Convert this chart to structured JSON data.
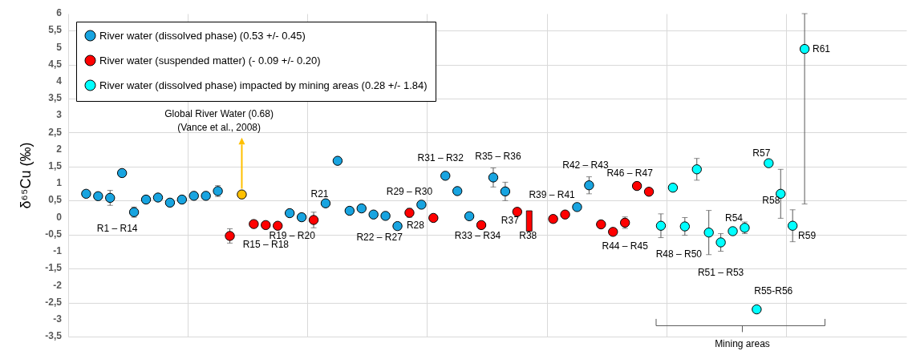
{
  "chart_data": {
    "type": "scatter",
    "ylabel": "δ⁶⁵Cu (‰)",
    "marker": "circle",
    "grid": true,
    "legend": "top left",
    "tick_labels": "y",
    "categories": [
      null,
      null,
      null,
      null,
      null,
      null,
      null,
      null,
      null,
      null,
      null,
      null,
      null,
      null,
      null,
      null,
      null,
      null,
      null,
      null,
      null,
      null,
      null,
      null,
      null,
      null,
      null,
      null,
      null,
      null,
      null,
      null,
      null,
      null,
      null,
      null,
      null,
      null,
      null,
      null,
      null,
      null,
      null,
      null,
      null,
      null,
      null,
      null,
      null,
      null,
      null,
      null,
      null,
      null,
      null,
      null,
      null,
      null,
      null,
      null,
      null,
      null,
      null,
      null,
      null,
      null,
      null,
      null,
      null,
      null
    ],
    "ylim": [
      -3.5,
      6
    ],
    "yticks": [
      {
        "value": -3.5,
        "label": "-3,5"
      },
      -3,
      {
        "value": -2.5,
        "label": "-2,5"
      },
      -2,
      {
        "value": -1.5,
        "label": "-1,5"
      },
      -1,
      {
        "value": -0.5,
        "label": "-0,5"
      },
      0,
      {
        "value": 0.5,
        "label": "0,5"
      },
      1,
      {
        "value": 1.5,
        "label": "1,5"
      },
      2,
      {
        "value": 2.5,
        "label": "2,5"
      },
      3,
      {
        "value": 3.5,
        "label": "3,5"
      },
      4,
      {
        "value": 4.5,
        "label": "4,5"
      },
      5,
      {
        "value": 5.5,
        "label": "5,5"
      },
      6
    ],
    "series": [
      {
        "name": "River water (dissolved phase) (0.53 +/- 0.45)",
        "color": "#18a4e0",
        "values": [
          null,
          0.7,
          0.63,
          0.58,
          1.31,
          0.16,
          0.53,
          0.59,
          0.44,
          0.53,
          0.64,
          0.64,
          0.78,
          null,
          null,
          null,
          null,
          null,
          0.13,
          0.01,
          null,
          0.42,
          1.67,
          0.2,
          0.27,
          0.09,
          0.05,
          -0.25,
          null,
          0.38,
          null,
          1.23,
          0.78,
          0.04,
          null,
          1.18,
          0.77,
          null,
          null,
          null,
          null,
          null,
          0.31,
          0.95,
          null,
          null,
          null,
          null,
          null,
          null,
          null,
          null,
          null,
          null,
          null,
          null,
          null,
          null,
          null,
          null,
          null,
          null,
          null,
          null,
          null,
          null,
          null,
          null,
          null,
          null
        ],
        "errors": [
          null,
          null,
          null,
          0.22,
          null,
          0.15,
          null,
          null,
          null,
          null,
          null,
          null,
          0.16,
          null,
          null,
          null,
          null,
          null,
          null,
          null,
          null,
          null,
          null,
          null,
          null,
          null,
          null,
          null,
          null,
          null,
          null,
          null,
          null,
          null,
          null,
          0.28,
          0.27,
          null,
          null,
          null,
          null,
          null,
          null,
          0.25,
          null,
          null,
          null,
          null,
          null,
          null,
          null,
          null,
          null,
          null,
          null,
          null,
          null,
          null,
          null,
          null,
          null,
          null,
          null,
          null,
          null,
          null,
          null,
          null,
          null,
          null
        ]
      },
      {
        "name": "River water (suspended matter) (- 0.09 +/- 0.20)",
        "color": "#ff0000",
        "values": [
          null,
          null,
          null,
          null,
          null,
          null,
          null,
          null,
          null,
          null,
          null,
          null,
          null,
          -0.54,
          null,
          -0.19,
          -0.22,
          -0.24,
          null,
          null,
          -0.07,
          null,
          null,
          null,
          null,
          null,
          null,
          null,
          0.14,
          null,
          -0.01,
          null,
          null,
          null,
          -0.22,
          null,
          null,
          0.17,
          null,
          null,
          -0.04,
          0.09,
          null,
          null,
          -0.2,
          -0.42,
          -0.15,
          0.93,
          0.76,
          null,
          null,
          null,
          null,
          null,
          null,
          null,
          null,
          null,
          null,
          null,
          null,
          null,
          null,
          null,
          null,
          null,
          null,
          null,
          null,
          null
        ],
        "errors": [
          null,
          null,
          null,
          null,
          null,
          null,
          null,
          null,
          null,
          null,
          null,
          null,
          null,
          0.21,
          null,
          null,
          null,
          null,
          null,
          null,
          0.23,
          null,
          null,
          null,
          null,
          null,
          null,
          null,
          0.13,
          null,
          null,
          null,
          null,
          null,
          null,
          null,
          null,
          null,
          null,
          null,
          null,
          null,
          null,
          null,
          null,
          null,
          0.17,
          null,
          null,
          null,
          null,
          null,
          null,
          null,
          null,
          null,
          null,
          null,
          null,
          null,
          null,
          null,
          null,
          null,
          null,
          null,
          null,
          null,
          null,
          null
        ]
      },
      {
        "name": "River water (dissolved phase) impacted by mining areas (0.28 +/- 1.84)",
        "color": "#00ffff",
        "values": [
          null,
          null,
          null,
          null,
          null,
          null,
          null,
          null,
          null,
          null,
          null,
          null,
          null,
          null,
          null,
          null,
          null,
          null,
          null,
          null,
          null,
          null,
          null,
          null,
          null,
          null,
          null,
          null,
          null,
          null,
          null,
          null,
          null,
          null,
          null,
          null,
          null,
          null,
          null,
          null,
          null,
          null,
          null,
          null,
          null,
          null,
          null,
          null,
          null,
          -0.24,
          0.88,
          -0.26,
          1.42,
          -0.44,
          -0.73,
          -0.4,
          -0.3,
          -2.7,
          1.6,
          0.7,
          -0.24,
          4.96,
          null,
          null,
          null,
          null,
          null,
          null,
          null,
          null
        ],
        "errors": [
          null,
          null,
          null,
          null,
          null,
          null,
          null,
          null,
          null,
          null,
          null,
          null,
          null,
          null,
          null,
          null,
          null,
          null,
          null,
          null,
          null,
          null,
          null,
          null,
          null,
          null,
          null,
          null,
          null,
          null,
          null,
          null,
          null,
          null,
          null,
          null,
          null,
          null,
          null,
          null,
          null,
          null,
          null,
          null,
          null,
          null,
          null,
          null,
          null,
          0.35,
          null,
          0.26,
          0.32,
          0.65,
          0.26,
          null,
          0.17,
          null,
          null,
          0.72,
          0.47,
          [
            0.4,
            6
          ],
          null,
          null,
          null,
          null,
          null,
          null,
          null,
          null
        ]
      },
      {
        "color": "#ffc000",
        "values": [
          null,
          null,
          null,
          null,
          null,
          null,
          null,
          null,
          null,
          null,
          null,
          null,
          null,
          null,
          0.68,
          null,
          null,
          null,
          null,
          null,
          null,
          null,
          null,
          null,
          null,
          null,
          null,
          null,
          null,
          null,
          null,
          null,
          null,
          null,
          null,
          null,
          null,
          null,
          null,
          null,
          null,
          null,
          null,
          null,
          null,
          null,
          null,
          null,
          null,
          null,
          null,
          null,
          null,
          null,
          null,
          null,
          null,
          null,
          null,
          null,
          null,
          null,
          null,
          null,
          null,
          null,
          null,
          null,
          null,
          null
        ]
      },
      {
        "type": "bar",
        "color": "#ff0000",
        "values": [
          null,
          null,
          null,
          null,
          null,
          null,
          null,
          null,
          null,
          null,
          null,
          null,
          null,
          null,
          null,
          null,
          null,
          null,
          null,
          null,
          null,
          null,
          null,
          null,
          null,
          null,
          null,
          null,
          null,
          null,
          null,
          null,
          null,
          null,
          null,
          null,
          null,
          null,
          0.6,
          null,
          null,
          null,
          null,
          null,
          null,
          null,
          null,
          null,
          null,
          null,
          null,
          null,
          null,
          null,
          null,
          null,
          null,
          null,
          null,
          null,
          null,
          null,
          null,
          null,
          null,
          null,
          null,
          null,
          null,
          null
        ],
        "base": [
          null,
          null,
          null,
          null,
          null,
          null,
          null,
          null,
          null,
          null,
          null,
          null,
          null,
          null,
          null,
          null,
          null,
          null,
          null,
          null,
          null,
          null,
          null,
          null,
          null,
          null,
          null,
          null,
          null,
          null,
          null,
          null,
          null,
          null,
          null,
          null,
          null,
          null,
          -0.4,
          null,
          null,
          null,
          null,
          null,
          null,
          null,
          null,
          null,
          null,
          null,
          null,
          null,
          null,
          null,
          null,
          null,
          null,
          null,
          null,
          null,
          null,
          null,
          null,
          null,
          null,
          null,
          null,
          null,
          null,
          null
        ]
      }
    ],
    "annotations": [
      "Global River Water (0.68)",
      "(Vance et al., 2008)",
      "R1 – R14",
      "R15 – R18",
      "R19 – R20",
      "R21",
      "R22 – R27",
      "R28",
      "R29 – R30",
      "R31 – R32",
      "R33 – R34",
      "R35 – R36",
      "R37",
      "R38",
      "R39 – R41",
      "R42 – R43",
      "R44 – R45",
      "R46 – R47",
      "R48 – R50",
      "R51 – R53",
      "R54",
      "R55-R56",
      "R57",
      "R58",
      "R59",
      "R61",
      "Mining areas"
    ]
  }
}
